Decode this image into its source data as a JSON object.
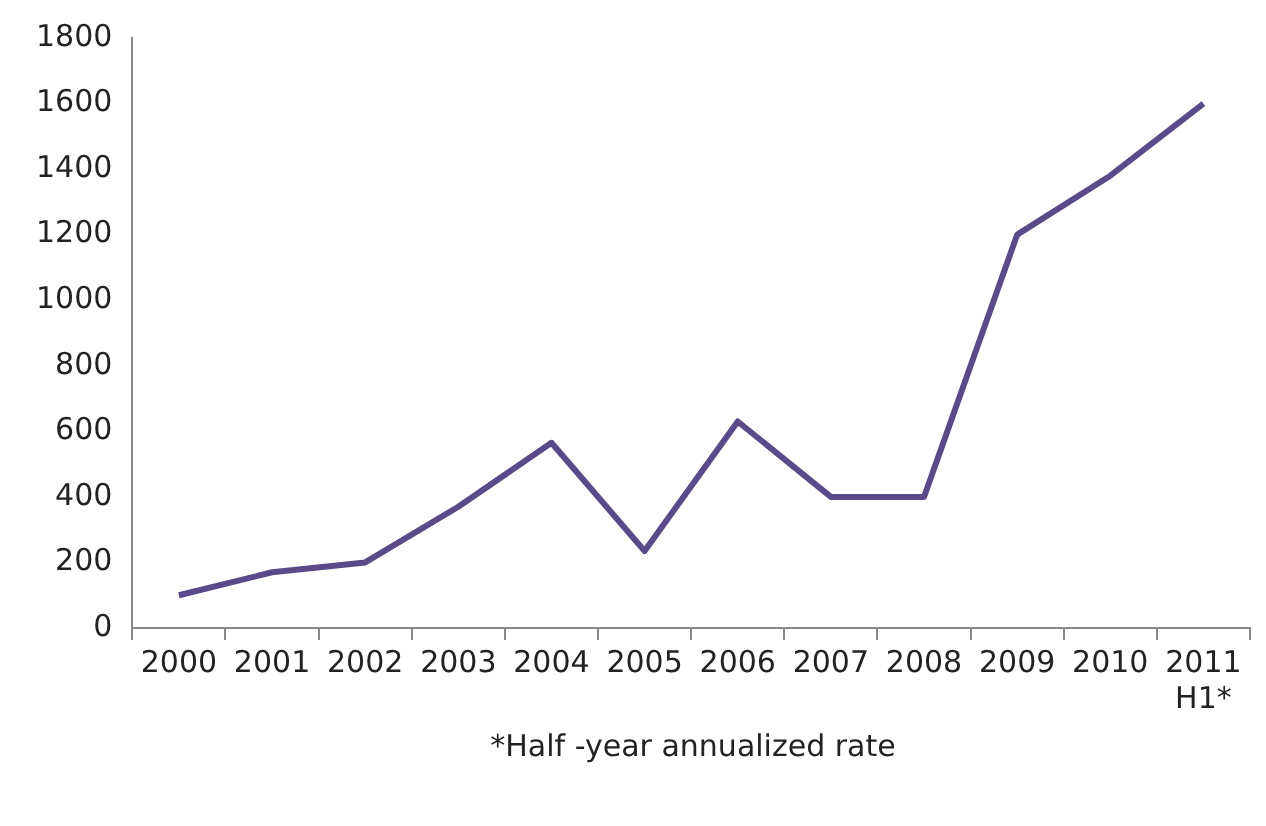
{
  "chart_data": {
    "type": "line",
    "categories": [
      "2000",
      "2001",
      "2002",
      "2003",
      "2004",
      "2005",
      "2006",
      "2007",
      "2008",
      "2009",
      "2010",
      "2011\nH1*"
    ],
    "series": [
      {
        "color": "#5b4a8a",
        "values": [
          100,
          170,
          200,
          370,
          565,
          235,
          630,
          400,
          400,
          1200,
          1380,
          1600
        ]
      }
    ],
    "ylim": [
      0,
      1800
    ],
    "yticks": [
      0,
      200,
      400,
      600,
      800,
      1000,
      1200,
      1400,
      1600,
      1800
    ],
    "grid": false,
    "legend": false,
    "marker": "none",
    "line_style": "solid",
    "annotations": [
      "*Half -year annualized rate"
    ]
  }
}
